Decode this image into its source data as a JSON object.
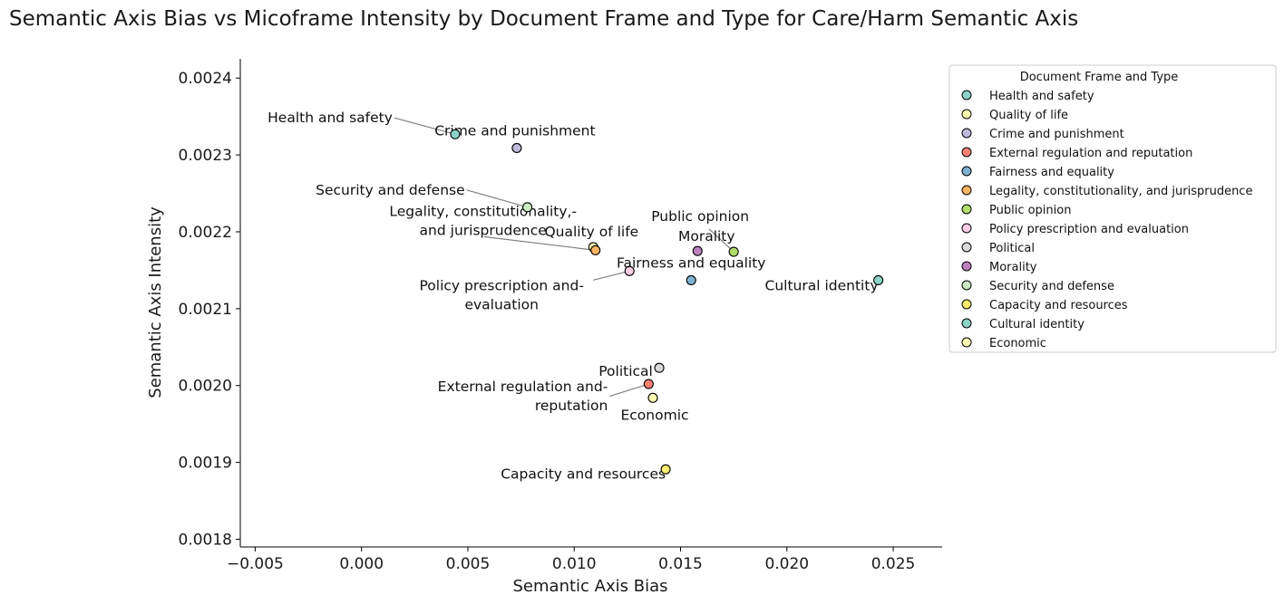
{
  "chart_data": {
    "type": "scatter",
    "title": "Semantic Axis Bias vs Micoframe Intensity by Document Frame and Type for Care/Harm Semantic Axis",
    "xlabel": "Semantic Axis Bias",
    "ylabel": "Semantic Axis Intensity",
    "xlim": [
      -0.0057,
      0.0273
    ],
    "ylim": [
      0.00179,
      0.002425
    ],
    "xticks": [
      -0.005,
      0.0,
      0.005,
      0.01,
      0.015,
      0.02,
      0.025
    ],
    "xtick_labels": [
      "−0.005",
      "0.000",
      "0.005",
      "0.010",
      "0.015",
      "0.020",
      "0.025"
    ],
    "yticks": [
      0.0018,
      0.0019,
      0.002,
      0.0021,
      0.0022,
      0.0023,
      0.0024
    ],
    "ytick_labels": [
      "0.0018",
      "0.0019",
      "0.0020",
      "0.0021",
      "0.0022",
      "0.0023",
      "0.0024"
    ],
    "grid": false,
    "legend": {
      "title": "Document Frame and Type",
      "placement": "outside-right-top"
    },
    "points": [
      {
        "name": "Health and safety",
        "x": 0.0044,
        "y": 0.002327,
        "color": "#8dd3c7",
        "label": [
          "Health and safety"
        ]
      },
      {
        "name": "Quality of life",
        "x": 0.0109,
        "y": 0.00218,
        "color": "#ffffb3",
        "label": [
          "Quality of life"
        ]
      },
      {
        "name": "Crime and punishment",
        "x": 0.0073,
        "y": 0.002309,
        "color": "#bebada",
        "label": [
          "Crime and punishment"
        ]
      },
      {
        "name": "External regulation and reputation",
        "x": 0.0135,
        "y": 0.002002,
        "color": "#fb8072",
        "label": [
          "External regulation and-",
          "reputation"
        ]
      },
      {
        "name": "Fairness and equality",
        "x": 0.0155,
        "y": 0.002137,
        "color": "#80b1d3",
        "label": [
          "Fairness and equality"
        ]
      },
      {
        "name": "Legality, constitutionality, and jurisprudence",
        "x": 0.011,
        "y": 0.002176,
        "color": "#fdb462",
        "label": [
          "Legality, constitutionality,-",
          "and jurisprudence"
        ]
      },
      {
        "name": "Public opinion",
        "x": 0.0175,
        "y": 0.002174,
        "color": "#b3de69",
        "label": [
          "Public opinion"
        ]
      },
      {
        "name": "Policy prescription and evaluation",
        "x": 0.0126,
        "y": 0.002149,
        "color": "#fccde5",
        "label": [
          "Policy prescription and-",
          "evaluation"
        ]
      },
      {
        "name": "Political",
        "x": 0.014,
        "y": 0.002023,
        "color": "#d9d9d9",
        "label": [
          "Political"
        ]
      },
      {
        "name": "Morality",
        "x": 0.0158,
        "y": 0.002175,
        "color": "#bc80bd",
        "label": [
          "Morality"
        ]
      },
      {
        "name": "Security and defense",
        "x": 0.0078,
        "y": 0.002232,
        "color": "#ccebc5",
        "label": [
          "Security and defense"
        ]
      },
      {
        "name": "Capacity and resources",
        "x": 0.0143,
        "y": 0.001891,
        "color": "#ffed6f",
        "label": [
          "Capacity and resources"
        ]
      },
      {
        "name": "Cultural identity",
        "x": 0.0243,
        "y": 0.002137,
        "color": "#8dd3c7",
        "label": [
          "Cultural identity"
        ]
      },
      {
        "name": "Economic",
        "x": 0.0137,
        "y": 0.001984,
        "color": "#ffffb3",
        "label": [
          "Economic"
        ]
      }
    ]
  }
}
